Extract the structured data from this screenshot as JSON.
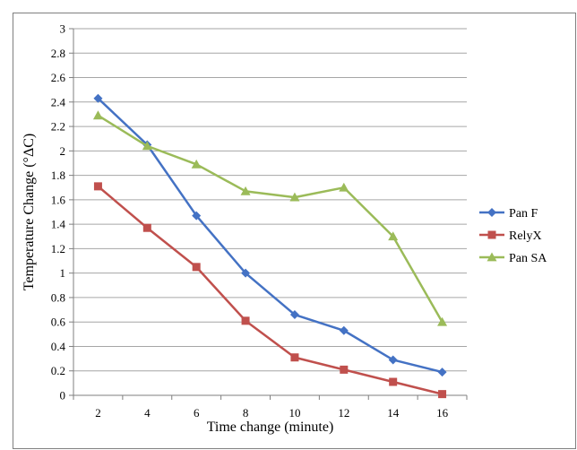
{
  "chart_data": {
    "type": "line",
    "title": "",
    "xlabel": "Time change (minute)",
    "ylabel": "Temperature Change (°ΔC)",
    "x": [
      2,
      4,
      6,
      8,
      10,
      12,
      14,
      16
    ],
    "x_tick_labels": [
      "2",
      "4",
      "6",
      "8",
      "10",
      "12",
      "14",
      "16"
    ],
    "ylim": [
      0,
      3
    ],
    "y_tick_labels": [
      "0",
      "0.2",
      "0.4",
      "0.6",
      "0.8",
      "1",
      "1.2",
      "1.4",
      "1.6",
      "1.8",
      "2",
      "2.2",
      "2.4",
      "2.6",
      "2.8",
      "3"
    ],
    "grid": true,
    "legend_position": "right",
    "series": [
      {
        "name": "Pan F",
        "color": "#4472c4",
        "marker": "diamond",
        "values": [
          2.43,
          2.05,
          1.47,
          1.0,
          0.66,
          0.53,
          0.29,
          0.19
        ]
      },
      {
        "name": "RelyX",
        "color": "#c0504d",
        "marker": "square",
        "values": [
          1.71,
          1.37,
          1.05,
          0.61,
          0.31,
          0.21,
          0.11,
          0.01
        ]
      },
      {
        "name": "Pan SA",
        "color": "#9bbb59",
        "marker": "triangle",
        "values": [
          2.29,
          2.04,
          1.89,
          1.67,
          1.62,
          1.7,
          1.3,
          0.6
        ]
      }
    ]
  }
}
